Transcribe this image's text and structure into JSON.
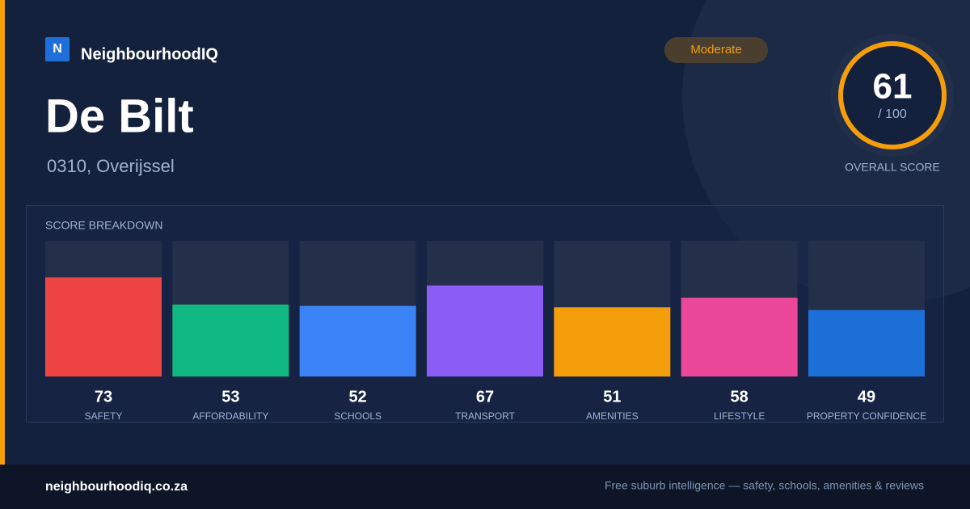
{
  "brand": {
    "logo": "N",
    "name": "NeighbourhoodIQ"
  },
  "title": "De Bilt",
  "subtitle": "0310, Overijssel",
  "badge": "Moderate",
  "score": {
    "value": "61",
    "max": "/ 100",
    "label": "OVERALL SCORE"
  },
  "chart_data": {
    "type": "bar",
    "title": "SCORE BREAKDOWN",
    "categories": [
      "SAFETY",
      "AFFORDABILITY",
      "SCHOOLS",
      "TRANSPORT",
      "AMENITIES",
      "LIFESTYLE",
      "PROPERTY CONFIDENCE"
    ],
    "values": [
      73,
      53,
      52,
      67,
      51,
      58,
      49
    ],
    "colors": [
      "#ef4444",
      "#10b981",
      "#3b82f6",
      "#8b5cf6",
      "#f59e0b",
      "#ec4899",
      "#1d6fd8"
    ],
    "ylim": [
      0,
      100
    ]
  },
  "footer": {
    "site": "neighbourhoodiq.co.za",
    "tagline": "Free suburb intelligence — safety, schools, amenities & reviews"
  }
}
